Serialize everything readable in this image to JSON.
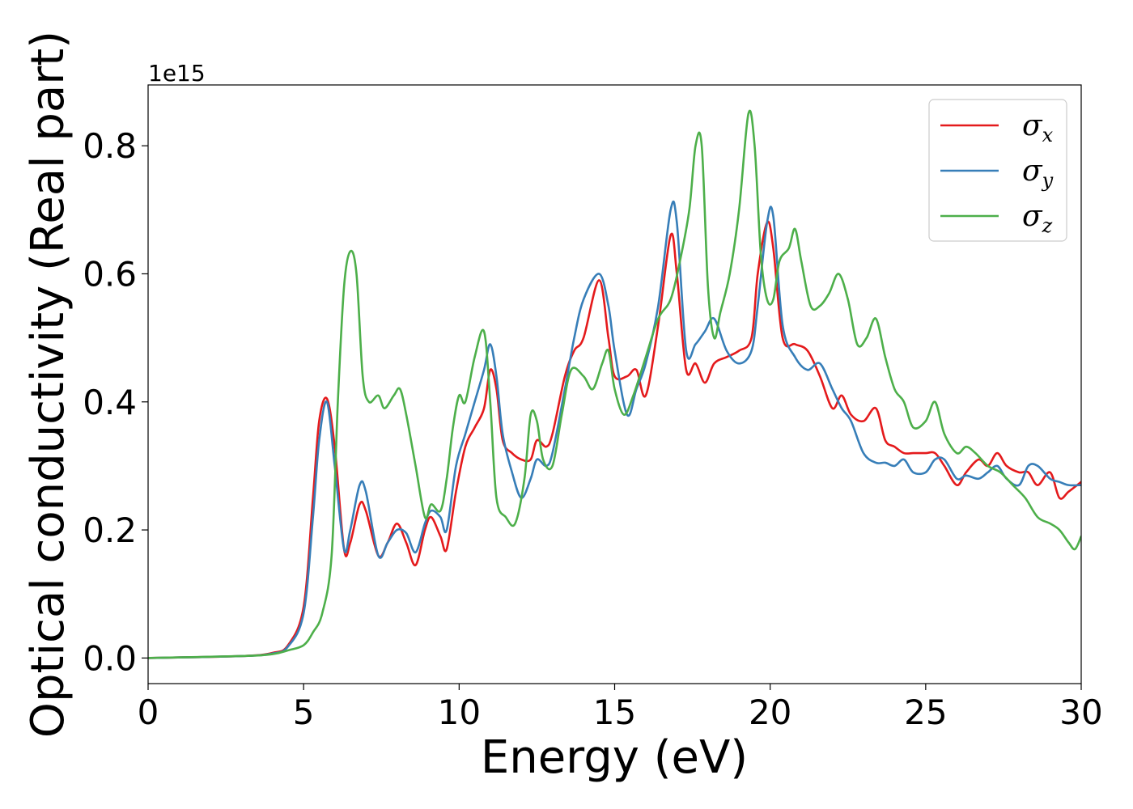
{
  "chart_data": {
    "type": "line",
    "xlabel": "Energy (eV)",
    "ylabel": "Optical conductivity (Real part)",
    "y_offset_label": "1e15",
    "xlim": [
      0,
      30
    ],
    "ylim": [
      -0.04,
      0.895
    ],
    "xticks": [
      0,
      5,
      10,
      15,
      20,
      25,
      30
    ],
    "yticks": [
      0.0,
      0.2,
      0.4,
      0.6,
      0.8
    ],
    "xtick_labels": [
      "0",
      "5",
      "10",
      "15",
      "20",
      "25",
      "30"
    ],
    "ytick_labels": [
      "0.0",
      "0.2",
      "0.4",
      "0.6",
      "0.8"
    ],
    "grid": false,
    "legend_position": "top-right",
    "series": [
      {
        "name": "σx",
        "symbol": "σ",
        "subscript": "x",
        "color": "#e41a1c",
        "x": [
          0,
          3,
          4,
          4.5,
          5,
          5.3,
          5.5,
          5.75,
          6,
          6.3,
          6.5,
          6.8,
          7,
          7.4,
          7.7,
          8,
          8.3,
          8.6,
          8.9,
          9.1,
          9.4,
          9.6,
          9.9,
          10.2,
          10.5,
          10.8,
          11,
          11.2,
          11.4,
          11.7,
          12,
          12.3,
          12.5,
          12.8,
          13,
          13.4,
          13.7,
          14,
          14.5,
          14.8,
          15,
          15.4,
          15.7,
          16,
          16.4,
          16.8,
          17,
          17.3,
          17.6,
          17.9,
          18.2,
          18.6,
          19,
          19.4,
          19.6,
          19.9,
          20.1,
          20.4,
          20.8,
          21.2,
          21.6,
          22,
          22.3,
          22.6,
          23,
          23.4,
          23.7,
          24,
          24.3,
          24.6,
          25,
          25.3,
          25.6,
          26,
          26.3,
          26.7,
          27,
          27.3,
          27.6,
          28,
          28.3,
          28.6,
          29,
          29.3,
          29.6,
          30
        ],
        "y": [
          0,
          0.003,
          0.008,
          0.02,
          0.08,
          0.25,
          0.37,
          0.405,
          0.33,
          0.17,
          0.18,
          0.24,
          0.23,
          0.16,
          0.18,
          0.21,
          0.18,
          0.145,
          0.2,
          0.22,
          0.19,
          0.17,
          0.26,
          0.33,
          0.36,
          0.39,
          0.45,
          0.42,
          0.34,
          0.32,
          0.31,
          0.31,
          0.34,
          0.33,
          0.35,
          0.44,
          0.48,
          0.5,
          0.59,
          0.5,
          0.44,
          0.44,
          0.45,
          0.41,
          0.52,
          0.66,
          0.6,
          0.45,
          0.46,
          0.43,
          0.46,
          0.47,
          0.48,
          0.5,
          0.6,
          0.68,
          0.64,
          0.5,
          0.49,
          0.48,
          0.44,
          0.39,
          0.41,
          0.38,
          0.37,
          0.39,
          0.34,
          0.33,
          0.32,
          0.32,
          0.32,
          0.32,
          0.3,
          0.27,
          0.29,
          0.31,
          0.3,
          0.32,
          0.3,
          0.29,
          0.29,
          0.27,
          0.29,
          0.25,
          0.26,
          0.275
        ]
      },
      {
        "name": "σy",
        "symbol": "σ",
        "subscript": "y",
        "color": "#377eb8",
        "x": [
          0,
          3,
          4,
          4.5,
          5,
          5.3,
          5.5,
          5.75,
          6,
          6.3,
          6.5,
          6.8,
          7,
          7.4,
          7.7,
          8,
          8.3,
          8.6,
          8.9,
          9.1,
          9.4,
          9.6,
          9.9,
          10.2,
          10.5,
          10.8,
          11,
          11.2,
          11.4,
          11.7,
          12,
          12.3,
          12.5,
          12.8,
          13,
          13.4,
          13.7,
          14,
          14.5,
          14.8,
          15,
          15.4,
          15.7,
          16,
          16.4,
          16.8,
          17,
          17.3,
          17.6,
          17.9,
          18.2,
          18.6,
          19,
          19.4,
          19.6,
          19.9,
          20.1,
          20.4,
          20.8,
          21.2,
          21.6,
          22,
          22.3,
          22.6,
          23,
          23.4,
          23.7,
          24,
          24.3,
          24.6,
          25,
          25.3,
          25.6,
          26,
          26.3,
          26.7,
          27,
          27.3,
          27.6,
          28,
          28.3,
          28.6,
          29,
          29.3,
          29.6,
          30
        ],
        "y": [
          0,
          0.003,
          0.007,
          0.018,
          0.07,
          0.22,
          0.34,
          0.4,
          0.3,
          0.17,
          0.2,
          0.27,
          0.26,
          0.16,
          0.18,
          0.2,
          0.195,
          0.165,
          0.21,
          0.23,
          0.22,
          0.2,
          0.3,
          0.35,
          0.4,
          0.45,
          0.49,
          0.44,
          0.35,
          0.29,
          0.25,
          0.28,
          0.31,
          0.3,
          0.32,
          0.42,
          0.5,
          0.56,
          0.6,
          0.55,
          0.48,
          0.38,
          0.42,
          0.46,
          0.55,
          0.7,
          0.68,
          0.48,
          0.49,
          0.51,
          0.53,
          0.48,
          0.46,
          0.48,
          0.55,
          0.68,
          0.69,
          0.52,
          0.47,
          0.45,
          0.46,
          0.42,
          0.39,
          0.37,
          0.32,
          0.305,
          0.305,
          0.3,
          0.31,
          0.29,
          0.29,
          0.31,
          0.31,
          0.28,
          0.285,
          0.28,
          0.29,
          0.3,
          0.28,
          0.27,
          0.3,
          0.3,
          0.28,
          0.275,
          0.27,
          0.27
        ]
      },
      {
        "name": "σz",
        "symbol": "σ",
        "subscript": "z",
        "color": "#4daf4a",
        "x": [
          0,
          3,
          4,
          4.5,
          5,
          5.3,
          5.6,
          5.9,
          6.1,
          6.3,
          6.5,
          6.7,
          6.9,
          7.1,
          7.4,
          7.6,
          7.9,
          8.1,
          8.3,
          8.6,
          8.9,
          9.1,
          9.4,
          9.6,
          9.8,
          10,
          10.2,
          10.5,
          10.8,
          11,
          11.2,
          11.5,
          11.8,
          12.1,
          12.3,
          12.5,
          12.7,
          13,
          13.3,
          13.6,
          14,
          14.3,
          14.6,
          14.8,
          15,
          15.3,
          15.6,
          16,
          16.4,
          16.8,
          17.1,
          17.4,
          17.6,
          17.8,
          18,
          18.2,
          18.4,
          18.7,
          19,
          19.3,
          19.5,
          19.7,
          19.9,
          20.1,
          20.3,
          20.6,
          20.8,
          21,
          21.3,
          21.6,
          21.9,
          22.2,
          22.5,
          22.8,
          23.1,
          23.4,
          23.7,
          24,
          24.3,
          24.6,
          25,
          25.3,
          25.6,
          26,
          26.3,
          26.6,
          27,
          27.4,
          27.8,
          28.2,
          28.6,
          29,
          29.3,
          29.6,
          29.8,
          30
        ],
        "y": [
          0,
          0.003,
          0.006,
          0.012,
          0.02,
          0.04,
          0.07,
          0.16,
          0.4,
          0.58,
          0.635,
          0.6,
          0.44,
          0.4,
          0.41,
          0.39,
          0.41,
          0.42,
          0.38,
          0.3,
          0.22,
          0.24,
          0.23,
          0.28,
          0.36,
          0.41,
          0.4,
          0.47,
          0.51,
          0.4,
          0.25,
          0.22,
          0.21,
          0.28,
          0.38,
          0.37,
          0.31,
          0.3,
          0.38,
          0.45,
          0.44,
          0.42,
          0.46,
          0.48,
          0.42,
          0.38,
          0.41,
          0.47,
          0.53,
          0.56,
          0.62,
          0.7,
          0.8,
          0.8,
          0.58,
          0.5,
          0.54,
          0.6,
          0.7,
          0.85,
          0.8,
          0.63,
          0.56,
          0.56,
          0.62,
          0.64,
          0.67,
          0.62,
          0.55,
          0.55,
          0.57,
          0.6,
          0.56,
          0.49,
          0.5,
          0.53,
          0.47,
          0.42,
          0.4,
          0.36,
          0.37,
          0.4,
          0.35,
          0.32,
          0.33,
          0.32,
          0.3,
          0.29,
          0.27,
          0.25,
          0.22,
          0.21,
          0.2,
          0.18,
          0.17,
          0.19
        ]
      }
    ]
  }
}
